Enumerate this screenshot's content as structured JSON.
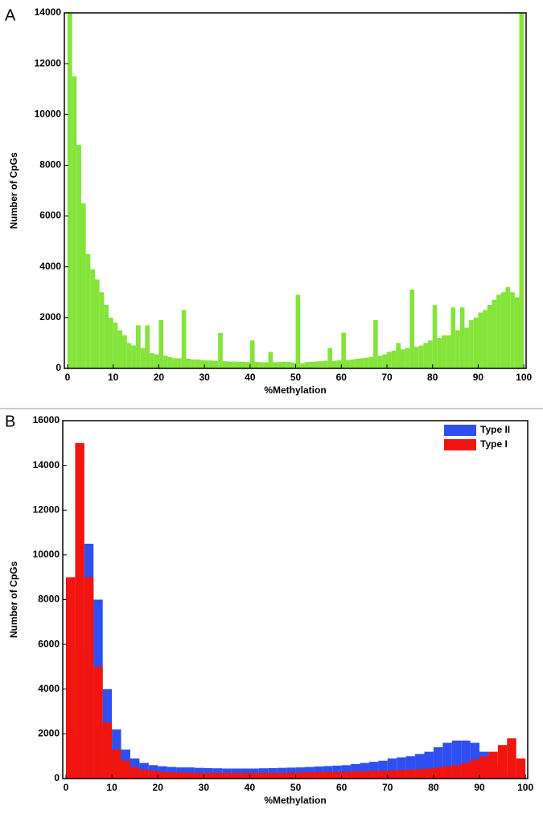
{
  "chart_data": [
    {
      "type": "histogram",
      "panel_label": "A",
      "xlabel": "%Methylation",
      "ylabel": "Number of CpGs",
      "color": "#84e43a",
      "bins": [
        0,
        1,
        2,
        3,
        4,
        5,
        6,
        7,
        8,
        9,
        10,
        11,
        12,
        13,
        14,
        15,
        16,
        17,
        18,
        19,
        20,
        21,
        22,
        23,
        24,
        25,
        26,
        27,
        28,
        29,
        30,
        31,
        32,
        33,
        34,
        35,
        36,
        37,
        38,
        39,
        40,
        41,
        42,
        43,
        44,
        45,
        46,
        47,
        48,
        49,
        50,
        51,
        52,
        53,
        54,
        55,
        56,
        57,
        58,
        59,
        60,
        61,
        62,
        63,
        64,
        65,
        66,
        67,
        68,
        69,
        70,
        71,
        72,
        73,
        74,
        75,
        76,
        77,
        78,
        79,
        80,
        81,
        82,
        83,
        84,
        85,
        86,
        87,
        88,
        89,
        90,
        91,
        92,
        93,
        94,
        95,
        96,
        97,
        98,
        99,
        100
      ],
      "values": [
        14000,
        11500,
        8800,
        6500,
        4500,
        3900,
        3500,
        3000,
        2500,
        2000,
        1800,
        1500,
        1300,
        1000,
        900,
        1700,
        800,
        1700,
        600,
        550,
        1900,
        500,
        450,
        400,
        400,
        2300,
        380,
        350,
        350,
        330,
        320,
        310,
        300,
        1400,
        280,
        270,
        270,
        260,
        260,
        250,
        1100,
        250,
        240,
        240,
        650,
        240,
        250,
        260,
        250,
        230,
        2900,
        200,
        250,
        260,
        270,
        280,
        300,
        800,
        300,
        320,
        1400,
        330,
        350,
        380,
        400,
        420,
        450,
        1900,
        500,
        550,
        650,
        700,
        1000,
        750,
        800,
        3100,
        850,
        900,
        1000,
        1100,
        2500,
        1200,
        1300,
        1300,
        2400,
        1500,
        2400,
        1600,
        1900,
        2000,
        2200,
        2300,
        2500,
        2700,
        2900,
        3000,
        3200,
        3000,
        2800,
        14000
      ],
      "xlim": [
        -0.7,
        100.5
      ],
      "xticks": [
        0,
        10,
        20,
        30,
        40,
        50,
        60,
        70,
        80,
        90,
        100
      ],
      "ylim": [
        0,
        14000
      ],
      "yticks": [
        0,
        2000,
        4000,
        6000,
        8000,
        10000,
        12000,
        14000
      ]
    },
    {
      "type": "histogram",
      "panel_label": "B",
      "xlabel": "%Methylation",
      "ylabel": "Number of CpGs",
      "legend": "upper right",
      "bins": [
        0,
        2,
        4,
        6,
        8,
        10,
        12,
        14,
        16,
        18,
        20,
        22,
        24,
        26,
        28,
        30,
        32,
        34,
        36,
        38,
        40,
        42,
        44,
        46,
        48,
        50,
        52,
        54,
        56,
        58,
        60,
        62,
        64,
        66,
        68,
        70,
        72,
        74,
        76,
        78,
        80,
        82,
        84,
        86,
        88,
        90,
        92,
        94,
        96,
        98,
        100
      ],
      "series": [
        {
          "name": "Type II",
          "color": "#2f4ff0",
          "values": [
            2000,
            6000,
            10500,
            8000,
            4000,
            2200,
            1300,
            900,
            700,
            600,
            550,
            520,
            500,
            500,
            480,
            470,
            460,
            450,
            450,
            450,
            450,
            460,
            470,
            480,
            490,
            500,
            520,
            540,
            560,
            580,
            600,
            650,
            700,
            750,
            800,
            900,
            950,
            1000,
            1100,
            1200,
            1400,
            1600,
            1700,
            1700,
            1600,
            1200,
            700,
            400,
            200,
            100
          ]
        },
        {
          "name": "Type I",
          "color": "#f2140f",
          "values": [
            9000,
            15000,
            9000,
            5000,
            2500,
            1300,
            800,
            500,
            400,
            350,
            300,
            280,
            270,
            260,
            250,
            250,
            250,
            250,
            250,
            250,
            250,
            250,
            250,
            250,
            260,
            270,
            280,
            290,
            300,
            300,
            310,
            320,
            330,
            340,
            350,
            360,
            380,
            400,
            420,
            450,
            500,
            550,
            600,
            700,
            850,
            1000,
            1200,
            1500,
            1800,
            900
          ]
        }
      ],
      "xlim": [
        -0.7,
        100.5
      ],
      "xticks": [
        0,
        10,
        20,
        30,
        40,
        50,
        60,
        70,
        80,
        90,
        100
      ],
      "ylim": [
        0,
        16000
      ],
      "yticks": [
        0,
        2000,
        4000,
        6000,
        8000,
        10000,
        12000,
        14000,
        16000
      ]
    }
  ]
}
